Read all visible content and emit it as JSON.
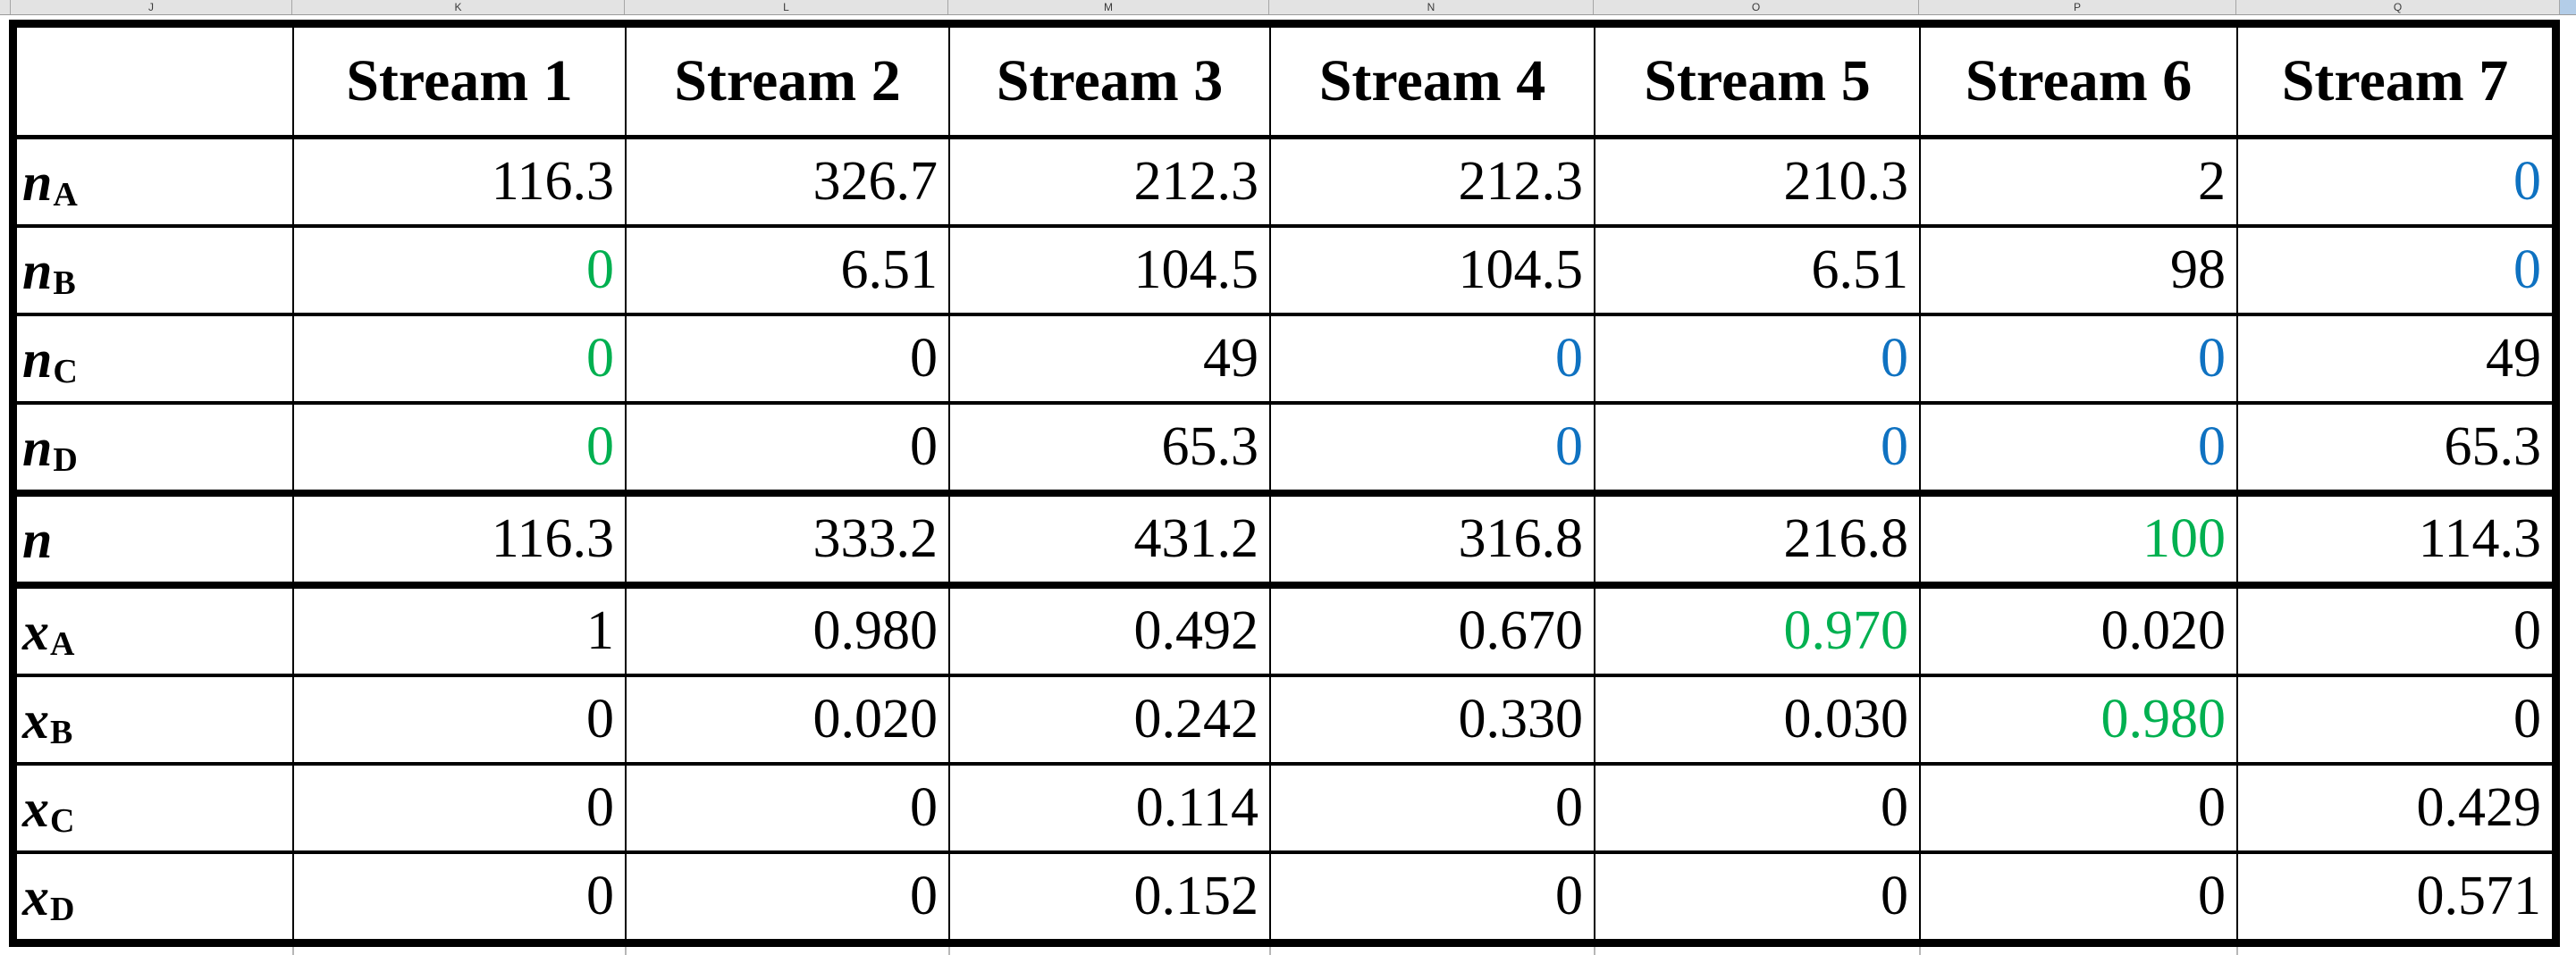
{
  "colors": {
    "black": "#000000",
    "green": "#00B050",
    "blue": "#0F72C1",
    "header_select": "#b3cde8"
  },
  "strip": {
    "column_letters": [
      "J",
      "K",
      "L",
      "M",
      "N",
      "O",
      "P",
      "Q"
    ]
  },
  "table": {
    "corner": "",
    "headers": [
      "Stream 1",
      "Stream 2",
      "Stream 3",
      "Stream 4",
      "Stream 5",
      "Stream 6",
      "Stream 7"
    ],
    "rows": [
      {
        "label_base": "n",
        "label_sub": "A",
        "section": "normal",
        "values": [
          "116.3",
          "326.7",
          "212.3",
          "212.3",
          "210.3",
          "2",
          "0"
        ],
        "colors": [
          "black",
          "black",
          "black",
          "black",
          "black",
          "black",
          "blue"
        ]
      },
      {
        "label_base": "n",
        "label_sub": "B",
        "section": "normal",
        "values": [
          "0",
          "6.51",
          "104.5",
          "104.5",
          "6.51",
          "98",
          "0"
        ],
        "colors": [
          "green",
          "black",
          "black",
          "black",
          "black",
          "black",
          "blue"
        ]
      },
      {
        "label_base": "n",
        "label_sub": "C",
        "section": "normal",
        "values": [
          "0",
          "0",
          "49",
          "0",
          "0",
          "0",
          "49"
        ],
        "colors": [
          "green",
          "black",
          "black",
          "blue",
          "blue",
          "blue",
          "black"
        ]
      },
      {
        "label_base": "n",
        "label_sub": "D",
        "section": "normal",
        "values": [
          "0",
          "0",
          "65.3",
          "0",
          "0",
          "0",
          "65.3"
        ],
        "colors": [
          "green",
          "black",
          "black",
          "blue",
          "blue",
          "blue",
          "black"
        ]
      },
      {
        "label_base": "n",
        "label_sub": "",
        "section": "thick",
        "values": [
          "116.3",
          "333.2",
          "431.2",
          "316.8",
          "216.8",
          "100",
          "114.3"
        ],
        "colors": [
          "black",
          "black",
          "black",
          "black",
          "black",
          "green",
          "black"
        ]
      },
      {
        "label_base": "x",
        "label_sub": "A",
        "section": "thick",
        "values": [
          "1",
          "0.980",
          "0.492",
          "0.670",
          "0.970",
          "0.020",
          "0"
        ],
        "colors": [
          "black",
          "black",
          "black",
          "black",
          "green",
          "black",
          "black"
        ]
      },
      {
        "label_base": "x",
        "label_sub": "B",
        "section": "normal",
        "values": [
          "0",
          "0.020",
          "0.242",
          "0.330",
          "0.030",
          "0.980",
          "0"
        ],
        "colors": [
          "black",
          "black",
          "black",
          "black",
          "black",
          "green",
          "black"
        ]
      },
      {
        "label_base": "x",
        "label_sub": "C",
        "section": "normal",
        "values": [
          "0",
          "0",
          "0.114",
          "0",
          "0",
          "0",
          "0.429"
        ],
        "colors": [
          "black",
          "black",
          "black",
          "black",
          "black",
          "black",
          "black"
        ]
      },
      {
        "label_base": "x",
        "label_sub": "D",
        "section": "normal",
        "values": [
          "0",
          "0",
          "0.152",
          "0",
          "0",
          "0",
          "0.571"
        ],
        "colors": [
          "black",
          "black",
          "black",
          "black",
          "black",
          "black",
          "black"
        ]
      }
    ]
  }
}
